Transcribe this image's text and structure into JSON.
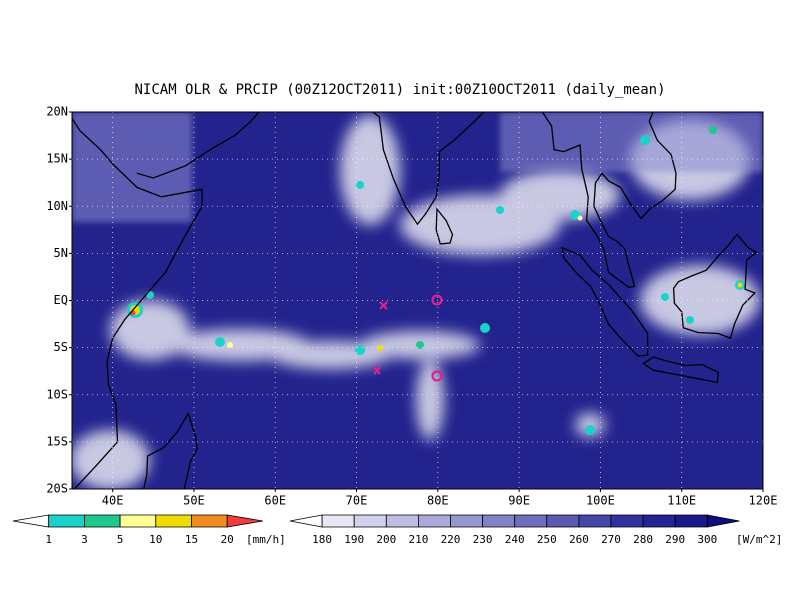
{
  "title": "NICAM OLR & PRCIP (00Z12OCT2011) init:00Z10OCT2011 (daily_mean)",
  "lat_labels": [
    "20N",
    "15N",
    "10N",
    "5N",
    "EQ",
    "5S",
    "10S",
    "15S",
    "20S"
  ],
  "lon_labels": [
    "40E",
    "50E",
    "60E",
    "70E",
    "80E",
    "90E",
    "100E",
    "110E",
    "120E"
  ],
  "precip_scale": {
    "levels": [
      1,
      3,
      5,
      10,
      15,
      20
    ],
    "unit": "[mm/h]",
    "colors": [
      "#ffffff",
      "#19d2c8",
      "#1ec88c",
      "#ffff96",
      "#f0dc00",
      "#f08c1e",
      "#f03c3c"
    ]
  },
  "olr_scale": {
    "levels": [
      180,
      190,
      200,
      210,
      220,
      230,
      240,
      250,
      260,
      270,
      280,
      290,
      300
    ],
    "unit": "[W/m^2]",
    "colors": [
      "#ffffff",
      "#e6e6f5",
      "#d2d2ec",
      "#bebee3",
      "#aaaada",
      "#9696d0",
      "#8282c6",
      "#6e6ebc",
      "#5a5ab2",
      "#4646a8",
      "#32329e",
      "#232394",
      "#19198a",
      "#0f0f7c"
    ]
  }
}
